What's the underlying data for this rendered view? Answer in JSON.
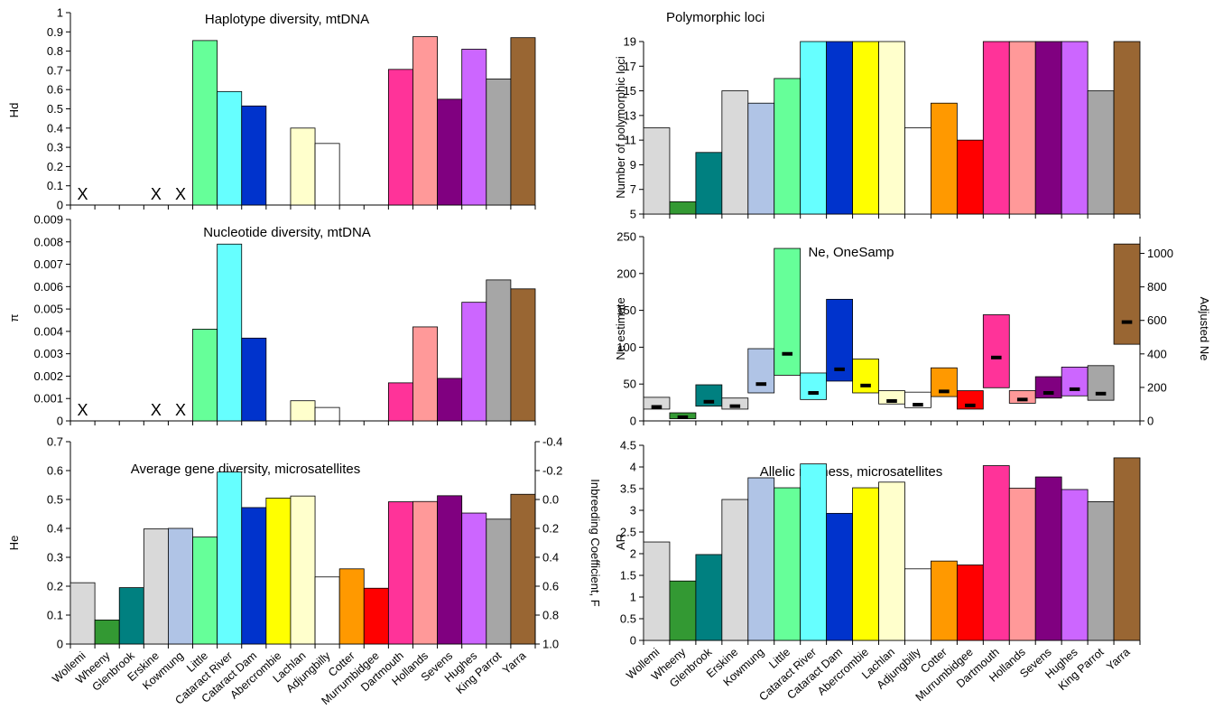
{
  "colors": [
    "#d9d9d9",
    "#339933",
    "#008080",
    "#d9d9d9",
    "#b0c4e6",
    "#66ff99",
    "#66ffff",
    "#0033cc",
    "#ffff00",
    "#ffffcc",
    "#ffffff",
    "#ff9900",
    "#ff0000",
    "#ff3399",
    "#ff9999",
    "#800080",
    "#cc66ff",
    "#a6a6a6",
    "#996633"
  ],
  "chart_data": [
    {
      "id": "hd",
      "type": "bar",
      "title": "Haplotype diversity, mtDNA",
      "ylabel": "Hd",
      "ylim": [
        0,
        1
      ],
      "yticks": [
        "0",
        "0.1",
        "0.2",
        "0.3",
        "0.4",
        "0.5",
        "0.6",
        "0.7",
        "0.8",
        "0.9",
        "1"
      ],
      "categories": [
        "Wollemi",
        "Wheeny",
        "Glenbrook",
        "Erskine",
        "Kowmung",
        "Little",
        "Cataract River",
        "Cataract Dam",
        "Abercrombie",
        "Lachlan",
        "Adjungbilly",
        "Cotter",
        "Murrumbidgee",
        "Dartmouth",
        "Hollands",
        "Sevens",
        "Hughes",
        "King Parrot",
        "Yarra"
      ],
      "values": [
        0,
        0,
        0,
        0,
        0,
        0.855,
        0.59,
        0.515,
        0,
        0.4,
        0.32,
        0,
        0,
        0.705,
        0.875,
        0.55,
        0.81,
        0.655,
        0.87
      ],
      "missing_mark": "X",
      "missing_indices": [
        0,
        3,
        4
      ]
    },
    {
      "id": "pi",
      "type": "bar",
      "title": "Nucleotide diversity, mtDNA",
      "ylabel": "π",
      "ylim": [
        0,
        0.009
      ],
      "yticks": [
        "0",
        "0.001",
        "0.002",
        "0.003",
        "0.004",
        "0.005",
        "0.006",
        "0.007",
        "0.008",
        "0.009"
      ],
      "categories": [
        "Wollemi",
        "Wheeny",
        "Glenbrook",
        "Erskine",
        "Kowmung",
        "Little",
        "Cataract River",
        "Cataract Dam",
        "Abercrombie",
        "Lachlan",
        "Adjungbilly",
        "Cotter",
        "Murrumbidgee",
        "Dartmouth",
        "Hollands",
        "Sevens",
        "Hughes",
        "King Parrot",
        "Yarra"
      ],
      "values": [
        0,
        0,
        0,
        0,
        0,
        0.0041,
        0.0079,
        0.0037,
        0,
        0.0009,
        0.0006,
        0,
        0,
        0.0017,
        0.0042,
        0.0019,
        0.0053,
        0.0063,
        0.0059
      ],
      "missing_mark": "X",
      "missing_indices": [
        0,
        3,
        4
      ]
    },
    {
      "id": "he",
      "type": "bar",
      "title": "Average gene diversity, microsatellites",
      "ylabel": "He",
      "ylabel2": "Inbreeding Coefficient, F",
      "ylim": [
        0,
        0.7
      ],
      "yticks": [
        "0",
        "0.1",
        "0.2",
        "0.3",
        "0.4",
        "0.5",
        "0.6",
        "0.7"
      ],
      "yticks2": [
        "1.0",
        "0.8",
        "0.6",
        "0.4",
        "0.2",
        "0.0",
        "-0.2",
        "-0.4"
      ],
      "categories": [
        "Wollemi",
        "Wheeny",
        "Glenbrook",
        "Erskine",
        "Kowmung",
        "Little",
        "Cataract River",
        "Cataract Dam",
        "Abercrombie",
        "Lachlan",
        "Adjungbilly",
        "Cotter",
        "Murrumbidgee",
        "Dartmouth",
        "Hollands",
        "Sevens",
        "Hughes",
        "King Parrot",
        "Yarra"
      ],
      "values": [
        0.212,
        0.083,
        0.195,
        0.398,
        0.4,
        0.37,
        0.595,
        0.472,
        0.505,
        0.512,
        0.232,
        0.26,
        0.193,
        0.492,
        0.493,
        0.513,
        0.453,
        0.432,
        0.518
      ]
    },
    {
      "id": "poly",
      "type": "bar",
      "title": "Polymorphic loci",
      "ylabel": "Number of polymorphic loci",
      "ylim": [
        5,
        19
      ],
      "yticks": [
        "5",
        "7",
        "9",
        "11",
        "13",
        "15",
        "17",
        "19"
      ],
      "categories": [
        "Wollemi",
        "Wheeny",
        "Glenbrook",
        "Erskine",
        "Kowmung",
        "Little",
        "Cataract River",
        "Cataract Dam",
        "Abercrombie",
        "Lachlan",
        "Adjungbilly",
        "Cotter",
        "Murrumbidgee",
        "Dartmouth",
        "Hollands",
        "Sevens",
        "Hughes",
        "King Parrot",
        "Yarra"
      ],
      "values": [
        12,
        6,
        10,
        15,
        14,
        16,
        19,
        19,
        19,
        19,
        12,
        14,
        11,
        19,
        19,
        19,
        19,
        15,
        19
      ]
    },
    {
      "id": "ne",
      "type": "bar",
      "title": "Ne, OneSamp",
      "ylabel": "Ne estimate",
      "ylabel2": "Adjusted Ne",
      "ylim": [
        0,
        250
      ],
      "ylim2": [
        0,
        1100
      ],
      "yticks": [
        "0",
        "50",
        "100",
        "150",
        "200",
        "250"
      ],
      "yticks2": [
        "0",
        "200",
        "400",
        "600",
        "800",
        "1000"
      ],
      "categories": [
        "Wollemi",
        "Wheeny",
        "Glenbrook",
        "Erskine",
        "Kowmung",
        "Little",
        "Cataract River",
        "Cataract Dam",
        "Abercrombie",
        "Lachlan",
        "Adjungbilly",
        "Cotter",
        "Murrumbidgee",
        "Dartmouth",
        "Hollands",
        "Sevens",
        "Hughes",
        "King Parrot",
        "Yarra"
      ],
      "low": [
        16,
        3,
        20,
        16,
        38,
        62,
        29,
        54,
        38,
        23,
        18,
        33,
        16,
        45,
        24,
        31,
        34,
        28,
        104
      ],
      "high": [
        32,
        11,
        49,
        31,
        98,
        234,
        65,
        165,
        84,
        41,
        39,
        72,
        41,
        144,
        41,
        60,
        73,
        75,
        240
      ],
      "point": [
        19,
        5,
        26,
        20,
        50,
        91,
        38,
        70,
        48,
        27,
        22,
        40,
        21,
        86,
        29,
        38,
        43,
        37,
        590
      ],
      "point_axis": [
        "left",
        "left",
        "left",
        "left",
        "left",
        "left",
        "left",
        "left",
        "left",
        "left",
        "left",
        "left",
        "left",
        "left",
        "left",
        "left",
        "left",
        "left",
        "right"
      ]
    },
    {
      "id": "ar",
      "type": "bar",
      "title": "Allelic richness, microsatellites",
      "ylabel": "AR",
      "ylim": [
        0,
        4.5
      ],
      "yticks": [
        "0",
        "0.5",
        "1",
        "1.5",
        "2",
        "2.5",
        "3",
        "3.5",
        "4",
        "4.5"
      ],
      "categories": [
        "Wollemi",
        "Wheeny",
        "Glenbrook",
        "Erskine",
        "Kowmung",
        "Little",
        "Cataract River",
        "Cataract Dam",
        "Abercrombie",
        "Lachlan",
        "Adjungbilly",
        "Cotter",
        "Murrumbidgee",
        "Dartmouth",
        "Hollands",
        "Sevens",
        "Hughes",
        "King Parrot",
        "Yarra"
      ],
      "values": [
        2.27,
        1.37,
        1.98,
        3.25,
        3.75,
        3.52,
        4.07,
        2.93,
        3.52,
        3.65,
        1.65,
        1.83,
        1.74,
        4.03,
        3.51,
        3.77,
        3.48,
        3.2,
        4.21
      ]
    }
  ]
}
